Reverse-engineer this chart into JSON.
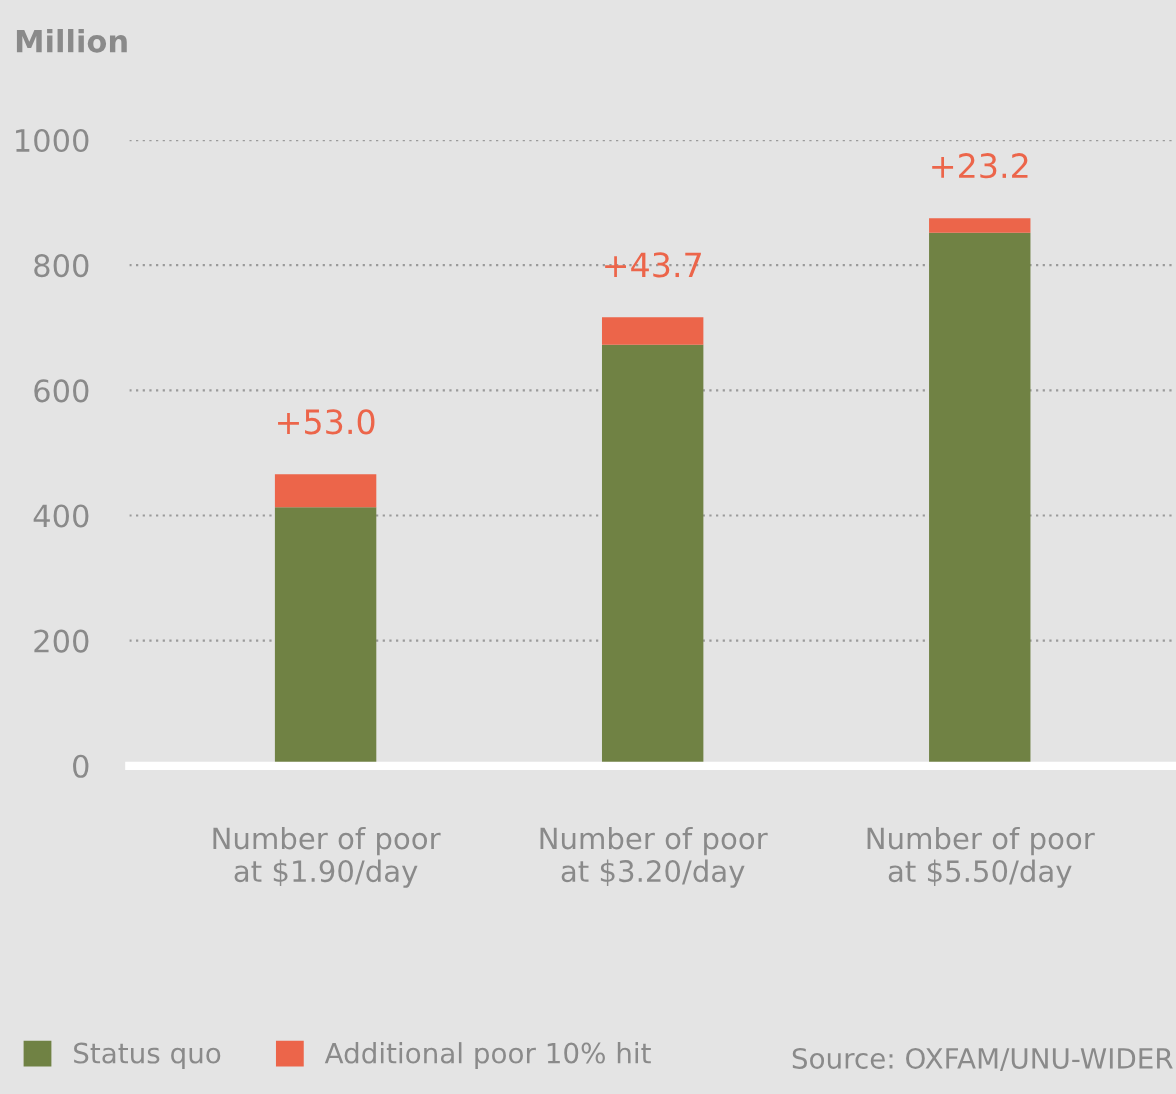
{
  "chart_data": {
    "type": "bar",
    "stacked": true,
    "ylabel": "Million",
    "categories": [
      "Number of poor\nat $1.90/day",
      "Number of poor\nat $3.20/day",
      "Number of poor\nat $5.50/day"
    ],
    "series": [
      {
        "name": "Status quo",
        "color": "#708244",
        "values": [
          413,
          673,
          852
        ]
      },
      {
        "name": "Additional poor 10% hit",
        "color": "#ec654a",
        "values": [
          53.0,
          43.7,
          23.2
        ],
        "value_labels": [
          "+53.0",
          "+43.7",
          "+23.2"
        ]
      }
    ],
    "ylim": [
      0,
      1000
    ],
    "yticks": [
      0,
      200,
      400,
      600,
      800,
      1000
    ],
    "grid": "y",
    "legend": "bottom left",
    "annotations": [
      "Source: OXFAM/UNU-WIDER"
    ]
  }
}
